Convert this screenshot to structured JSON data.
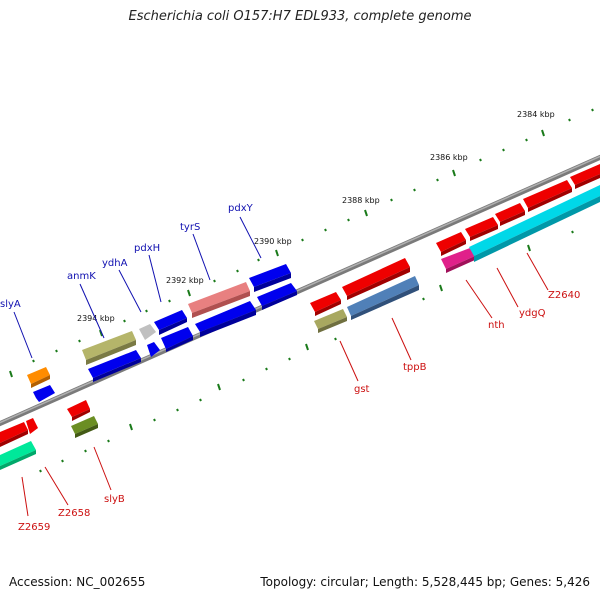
{
  "title": "Escherichia coli O157:H7 EDL933, complete genome",
  "footer": {
    "accession": "Accession: NC_002655",
    "summary": "Topology: circular; Length: 5,528,445 bp; Genes: 5,426"
  },
  "scale": {
    "tick_labels": [
      "2384 kbp",
      "2386 kbp",
      "2388 kbp",
      "2390 kbp",
      "2392 kbp",
      "2394 kbp"
    ]
  },
  "colors": {
    "forward_label": "#1010b0",
    "reverse_label": "#cc1010",
    "tick": "#1a7a1a",
    "backbone": "#808080"
  },
  "genes": [
    {
      "name": "slyA",
      "strand": "forward",
      "color": "#ff8c00"
    },
    {
      "name": "anmK",
      "strand": "forward",
      "color": "#b5b56a"
    },
    {
      "name": "ydhA",
      "strand": "forward",
      "color": "#c0c0c0"
    },
    {
      "name": "pdxH",
      "strand": "forward",
      "color": "#0000ee"
    },
    {
      "name": "tyrS",
      "strand": "forward",
      "color": "#e88080"
    },
    {
      "name": "pdxY",
      "strand": "forward",
      "color": "#0000ee"
    },
    {
      "name": "gst",
      "strand": "reverse",
      "color": "#a8a860"
    },
    {
      "name": "tppB",
      "strand": "reverse",
      "color": "#5080b8"
    },
    {
      "name": "nth",
      "strand": "reverse",
      "color": "#e0208a"
    },
    {
      "name": "ydgQ",
      "strand": "reverse",
      "color": "#00d8e8"
    },
    {
      "name": "Z2640",
      "strand": "reverse",
      "color": "#00d8e8"
    },
    {
      "name": "slyB",
      "strand": "reverse",
      "color": "#6b8e23"
    },
    {
      "name": "Z2658",
      "strand": "reverse",
      "color": "#00e89a"
    },
    {
      "name": "Z2659",
      "strand": "reverse",
      "color": "#ee0000"
    }
  ]
}
